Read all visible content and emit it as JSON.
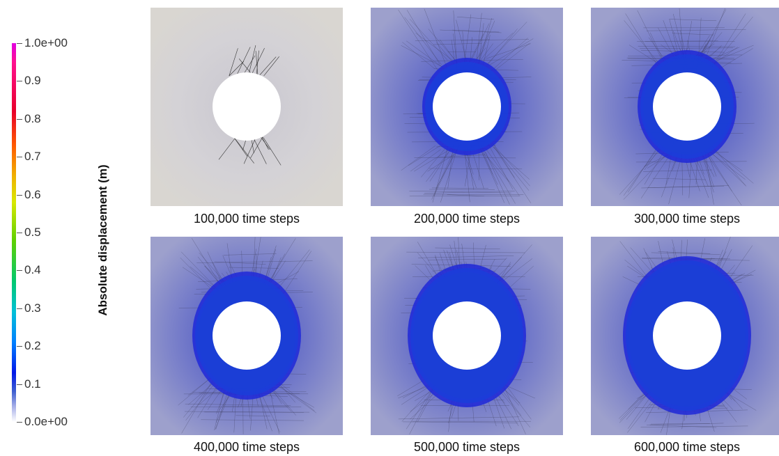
{
  "legend": {
    "title": "Absolute displacement (m)",
    "ticks": [
      "1.0e+00",
      "0.9",
      "0.8",
      "0.7",
      "0.6",
      "0.5",
      "0.4",
      "0.3",
      "0.2",
      "0.1",
      "0.0e+00"
    ],
    "colors": [
      "#e000e0",
      "#e8002a",
      "#ff5a00",
      "#d8e800",
      "#60d000",
      "#00c870",
      "#00c0d8",
      "#0080ff",
      "#0018e8",
      "#ffffff"
    ]
  },
  "panels": [
    {
      "caption": "100,000 time steps",
      "damage": 0
    },
    {
      "caption": "200,000 time steps",
      "damage": 1
    },
    {
      "caption": "300,000 time steps",
      "damage": 2
    },
    {
      "caption": "400,000 time steps",
      "damage": 3
    },
    {
      "caption": "500,000 time steps",
      "damage": 4
    },
    {
      "caption": "600,000 time steps",
      "damage": 5
    }
  ]
}
